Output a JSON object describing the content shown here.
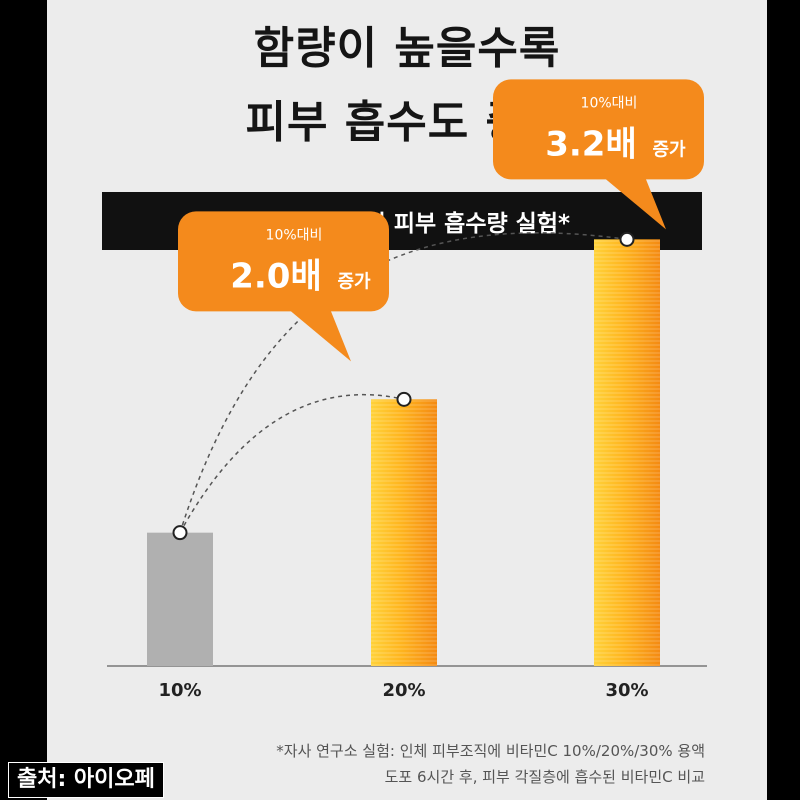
{
  "headline": {
    "line1": "함량이 높을수록",
    "line2": "피부 흡수도 증가"
  },
  "banner": "비타민C 함량별 피부 흡수량 실험*",
  "chart_data": {
    "type": "bar",
    "categories": [
      "10%",
      "20%",
      "30%"
    ],
    "values": [
      1.0,
      2.0,
      3.2
    ],
    "ylim": [
      0,
      3.6
    ],
    "bar_colors": [
      "#b0b0b0",
      "#f7a020",
      "#f7a020"
    ],
    "annotations": [
      {
        "category": "20%",
        "small": "10%대비",
        "value": "2.0배",
        "unit": "증가"
      },
      {
        "category": "30%",
        "small": "10%대비",
        "value": "3.2배",
        "unit": "증가"
      }
    ],
    "accent_color": "#f48a1c"
  },
  "footnote": {
    "line1": "*자사 연구소 실험: 인체 피부조직에 비타민C 10%/20%/30% 용액",
    "line2": "도포 6시간 후, 피부 각질층에 흡수된 비타민C 비교"
  },
  "source": "출처: 아이오페"
}
